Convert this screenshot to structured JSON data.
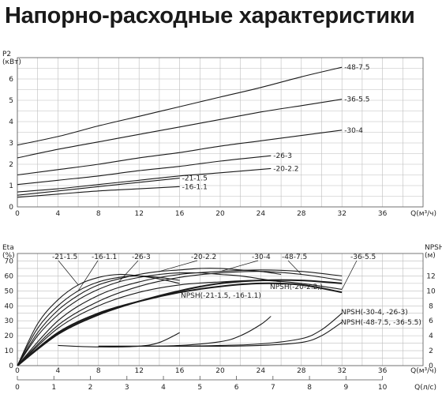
{
  "title": "Напорно-расходные характеристики",
  "chart_data": [
    {
      "type": "line",
      "ylabel": "P2\n(кВт)",
      "xlabel": "Q(м³/ч)",
      "xlim": [
        0,
        40
      ],
      "ylim": [
        0,
        7
      ],
      "xticks": [
        0,
        4,
        8,
        12,
        16,
        20,
        24,
        28,
        32,
        36
      ],
      "yticks": [
        0,
        1,
        2,
        3,
        4,
        5,
        6
      ],
      "series": [
        {
          "name": "-48-7.5",
          "x": [
            0,
            4,
            8,
            12,
            16,
            20,
            24,
            28,
            32
          ],
          "y": [
            2.9,
            3.3,
            3.8,
            4.25,
            4.7,
            5.15,
            5.6,
            6.1,
            6.55
          ]
        },
        {
          "name": "-36-5.5",
          "x": [
            0,
            4,
            8,
            12,
            16,
            20,
            24,
            28,
            32
          ],
          "y": [
            2.3,
            2.7,
            3.05,
            3.4,
            3.75,
            4.1,
            4.45,
            4.75,
            5.05
          ]
        },
        {
          "name": "-30-4",
          "x": [
            0,
            4,
            8,
            12,
            16,
            20,
            24,
            28,
            32
          ],
          "y": [
            1.5,
            1.75,
            2.0,
            2.3,
            2.55,
            2.85,
            3.1,
            3.35,
            3.6
          ]
        },
        {
          "name": "-26-3",
          "x": [
            0,
            4,
            8,
            12,
            16,
            20,
            25
          ],
          "y": [
            1.05,
            1.25,
            1.45,
            1.7,
            1.9,
            2.15,
            2.4
          ]
        },
        {
          "name": "-20-2.2",
          "x": [
            0,
            4,
            8,
            12,
            16,
            20,
            25
          ],
          "y": [
            0.7,
            0.85,
            1.05,
            1.25,
            1.45,
            1.6,
            1.8
          ]
        },
        {
          "name": "-21-1.5",
          "x": [
            0,
            4,
            8,
            12,
            16
          ],
          "y": [
            0.55,
            0.75,
            0.95,
            1.15,
            1.35
          ]
        },
        {
          "name": "-16-1.1",
          "x": [
            0,
            4,
            8,
            12,
            16
          ],
          "y": [
            0.45,
            0.6,
            0.75,
            0.85,
            0.95
          ]
        }
      ]
    },
    {
      "type": "line",
      "ylabel": "Eta\n(%)",
      "y2label": "NPSH\n(м)",
      "xlabel": "Q(м³/ч)",
      "x2label": "Q(л/с)",
      "xlim": [
        0,
        40
      ],
      "ylim": [
        0,
        75
      ],
      "y2lim": [
        0,
        15
      ],
      "xticks": [
        0,
        4,
        8,
        12,
        16,
        20,
        24,
        28,
        32,
        36
      ],
      "yticks": [
        0,
        10,
        20,
        30,
        40,
        50,
        60,
        70
      ],
      "y2ticks": [
        0,
        2,
        4,
        6,
        8,
        10,
        12
      ],
      "x2ticks": [
        0,
        1,
        2,
        3,
        4,
        5,
        6,
        7,
        8,
        9,
        10
      ],
      "efficiency_series": [
        {
          "name": "-21-1.5",
          "x": [
            0,
            2,
            4,
            6,
            8,
            10,
            12,
            14,
            16
          ],
          "y": [
            0,
            28,
            44,
            54,
            59,
            61,
            60,
            58,
            55
          ]
        },
        {
          "name": "-16-1.1",
          "x": [
            0,
            2,
            4,
            6,
            8,
            10,
            12,
            14,
            16
          ],
          "y": [
            0,
            25,
            40,
            50,
            56,
            59,
            60,
            59,
            57
          ]
        },
        {
          "name": "-26-3",
          "x": [
            0,
            2,
            4,
            6,
            8,
            10,
            12,
            14,
            16,
            18,
            20,
            22,
            24,
            26
          ],
          "y": [
            0,
            20,
            34,
            44,
            51,
            56,
            59,
            61,
            62,
            62,
            61,
            60,
            58,
            56
          ]
        },
        {
          "name": "-20-2.2",
          "x": [
            0,
            2,
            4,
            6,
            8,
            10,
            12,
            14,
            16,
            18,
            20,
            22,
            24,
            26
          ],
          "y": [
            0,
            22,
            37,
            47,
            54,
            58,
            61,
            63,
            64,
            65,
            65,
            64,
            63,
            61
          ]
        },
        {
          "name": "-30-4",
          "x": [
            0,
            4,
            8,
            12,
            16,
            20,
            24,
            28,
            32
          ],
          "y": [
            0,
            30,
            47,
            56,
            61,
            63,
            64,
            63,
            60
          ]
        },
        {
          "name": "-48-7.5",
          "x": [
            0,
            4,
            8,
            12,
            16,
            20,
            24,
            28,
            32
          ],
          "y": [
            0,
            27,
            43,
            53,
            59,
            62,
            63,
            61,
            57
          ]
        },
        {
          "name": "-36-5.5",
          "x": [
            0,
            4,
            8,
            12,
            16,
            20,
            24,
            28,
            32
          ],
          "y": [
            0,
            25,
            40,
            49,
            54,
            56,
            57,
            55,
            51
          ]
        }
      ],
      "thick_series": [
        {
          "x": [
            0,
            4,
            8,
            12,
            16,
            20,
            24,
            28,
            32
          ],
          "y": [
            0,
            22,
            35,
            43,
            49,
            53,
            55,
            54,
            49
          ]
        },
        {
          "x": [
            0,
            4,
            8,
            12,
            16,
            20,
            24,
            28,
            32
          ],
          "y": [
            0,
            21,
            34,
            43,
            50,
            55,
            57,
            57,
            55
          ]
        }
      ],
      "npsh_series": [
        {
          "name": "NPSH(-21-1.5, -16-1.1)",
          "x": [
            4,
            8,
            12,
            14,
            16
          ],
          "y": [
            2.7,
            2.5,
            2.6,
            3.1,
            4.4
          ]
        },
        {
          "name": "NPSH(-20-2.2,)",
          "x": [
            8,
            12,
            16,
            20,
            22,
            24,
            25
          ],
          "y": [
            2.6,
            2.6,
            2.7,
            3.2,
            4.0,
            5.5,
            6.6
          ]
        },
        {
          "name": "NPSH(-30-4, -26-3)",
          "x": [
            8,
            12,
            16,
            20,
            24,
            28,
            30,
            32
          ],
          "y": [
            2.6,
            2.6,
            2.6,
            2.7,
            2.9,
            3.6,
            4.8,
            7.0
          ]
        },
        {
          "name": "NPSH(-48-7.5, -36-5.5)",
          "x": [
            8,
            12,
            16,
            20,
            24,
            28,
            30,
            32
          ],
          "y": [
            2.6,
            2.6,
            2.6,
            2.6,
            2.7,
            3.1,
            4.0,
            5.8
          ]
        }
      ]
    }
  ]
}
